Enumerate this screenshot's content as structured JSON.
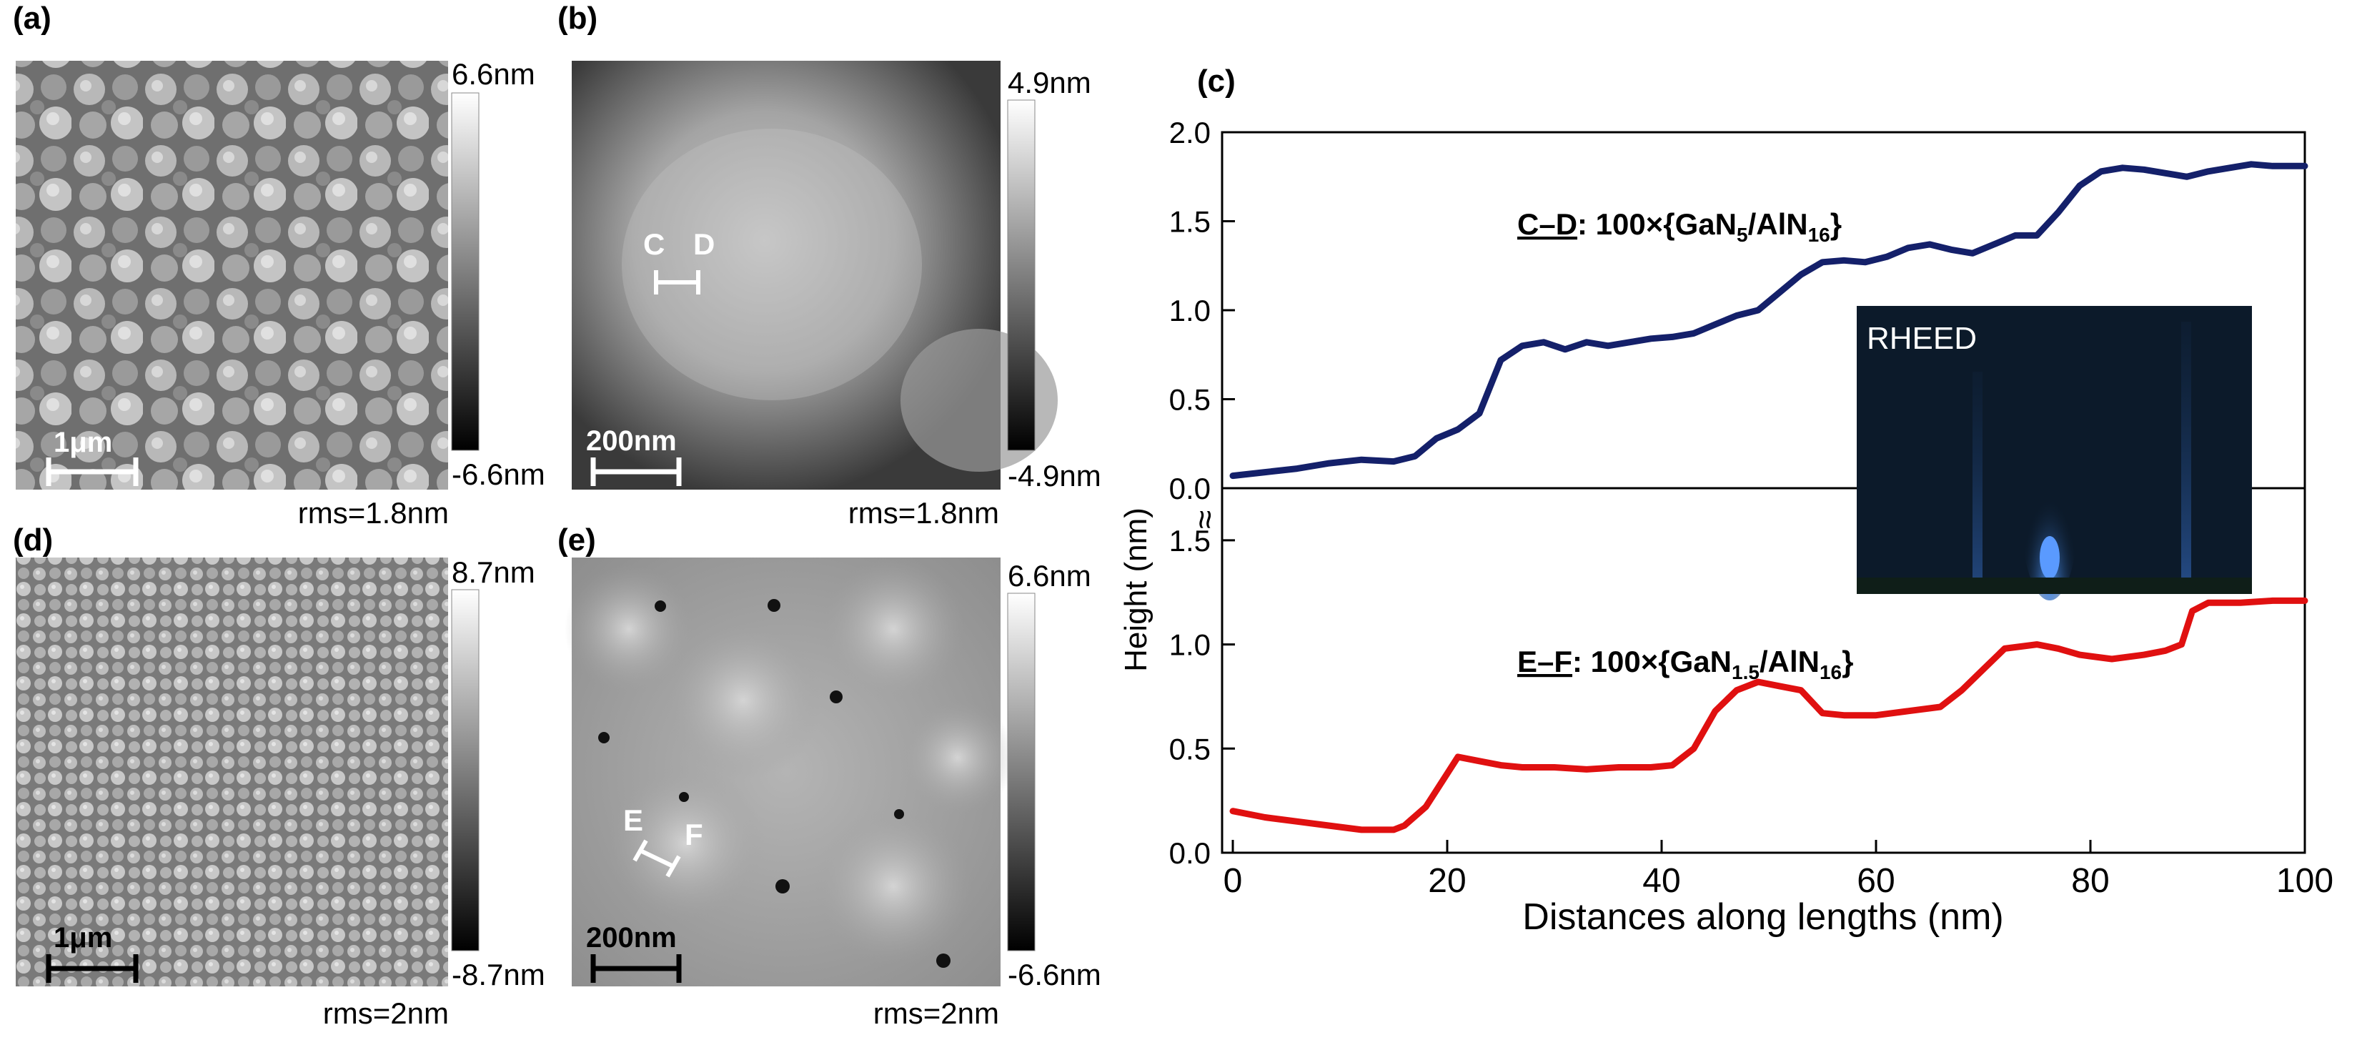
{
  "panels": {
    "a": {
      "label": "(a)",
      "scale_bar": "1μm",
      "cbar_max": "6.6nm",
      "cbar_min": "-6.6nm",
      "rms": "rms=1.8nm"
    },
    "b": {
      "label": "(b)",
      "scale_bar": "200nm",
      "cbar_max": "4.9nm",
      "cbar_min": "-4.9nm",
      "rms": "rms=1.8nm",
      "marker_start": "C",
      "marker_end": "D"
    },
    "d": {
      "label": "(d)",
      "scale_bar": "1μm",
      "cbar_max": "8.7nm",
      "cbar_min": "-8.7nm",
      "rms": "rms=2nm"
    },
    "e": {
      "label": "(e)",
      "scale_bar": "200nm",
      "cbar_max": "6.6nm",
      "cbar_min": "-6.6nm",
      "rms": "rms=2nm",
      "marker_start": "E",
      "marker_end": "F"
    }
  },
  "colors": {
    "cd_series": "#14206a",
    "ef_series": "#e01010",
    "rheed_bg": "#0c1a2a",
    "rheed_streak": "#3a7ad8"
  },
  "chart_data": {
    "type": "line",
    "panel_label": "(c)",
    "xlabel": "Distances along lengths (nm)",
    "ylabel": "Height (nm)",
    "xlim": [
      0,
      100
    ],
    "x_ticks": [
      "0",
      "20",
      "40",
      "60",
      "80",
      "100"
    ],
    "y_ticks_upper": [
      "0.0",
      "0.5",
      "1.0",
      "1.5",
      "2.0"
    ],
    "y_ticks_lower": [
      "0.0",
      "0.5",
      "1.0",
      "1.5"
    ],
    "axis_break_symbol": "≈",
    "inset_label": "RHEED",
    "series": [
      {
        "name": "C–D: 100×{GaN5/AlN16}",
        "label_underlined": "C–D",
        "label_prefix": ": 100×{GaN",
        "label_sub1": "5",
        "label_mid": "/AlN",
        "label_sub2": "16",
        "label_suffix": "}",
        "ylim": [
          0,
          2.0
        ],
        "x": [
          0,
          3,
          6,
          9,
          12,
          15,
          17,
          19,
          21,
          23,
          25,
          27,
          29,
          31,
          33,
          35,
          37,
          39,
          41,
          43,
          45,
          47,
          49,
          51,
          53,
          55,
          57,
          59,
          61,
          63,
          65,
          67,
          69,
          71,
          73,
          75,
          77,
          79,
          81,
          83,
          85,
          87,
          89,
          91,
          93,
          95,
          97,
          100
        ],
        "values": [
          0.07,
          0.09,
          0.11,
          0.14,
          0.16,
          0.15,
          0.18,
          0.28,
          0.33,
          0.42,
          0.72,
          0.8,
          0.82,
          0.78,
          0.82,
          0.8,
          0.82,
          0.84,
          0.85,
          0.87,
          0.92,
          0.97,
          1.0,
          1.1,
          1.2,
          1.27,
          1.28,
          1.27,
          1.3,
          1.35,
          1.37,
          1.34,
          1.32,
          1.37,
          1.42,
          1.42,
          1.55,
          1.7,
          1.78,
          1.8,
          1.79,
          1.77,
          1.75,
          1.78,
          1.8,
          1.82,
          1.81,
          1.81
        ]
      },
      {
        "name": "E–F: 100×{GaN1.5/AlN16}",
        "label_underlined": "E–F",
        "label_prefix": ": 100×{GaN",
        "label_sub1": "1.5",
        "label_mid": "/AlN",
        "label_sub2": "16",
        "label_suffix": "}",
        "ylim": [
          0,
          1.75
        ],
        "x": [
          0,
          3,
          6,
          9,
          12,
          15,
          16,
          18,
          20,
          21,
          23,
          25,
          27,
          30,
          33,
          36,
          39,
          41,
          43,
          45,
          47,
          49,
          51,
          53,
          55,
          57,
          60,
          63,
          66,
          68,
          70,
          72,
          75,
          77,
          79,
          82,
          85,
          87,
          88.5,
          89.5,
          91,
          94,
          97,
          100
        ],
        "values": [
          0.2,
          0.17,
          0.15,
          0.13,
          0.11,
          0.11,
          0.13,
          0.22,
          0.38,
          0.46,
          0.44,
          0.42,
          0.41,
          0.41,
          0.4,
          0.41,
          0.41,
          0.42,
          0.5,
          0.68,
          0.78,
          0.82,
          0.8,
          0.78,
          0.67,
          0.66,
          0.66,
          0.68,
          0.7,
          0.78,
          0.88,
          0.98,
          1.0,
          0.98,
          0.95,
          0.93,
          0.95,
          0.97,
          1.0,
          1.16,
          1.2,
          1.2,
          1.21,
          1.21
        ]
      }
    ]
  }
}
